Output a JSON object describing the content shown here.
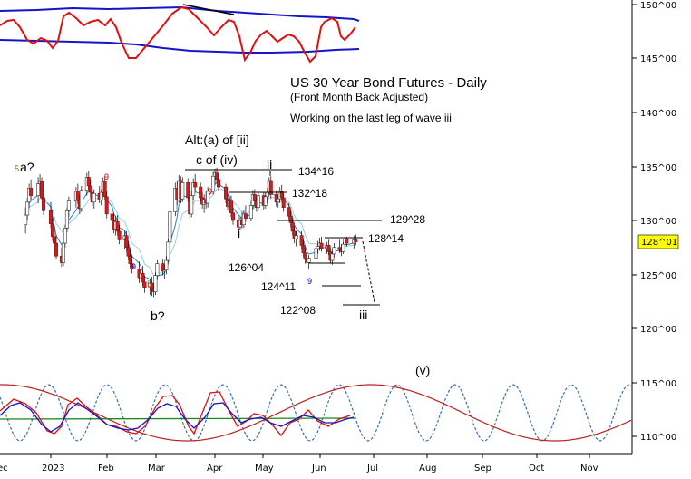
{
  "chart_data": {
    "type": "candlestick",
    "title": "US 30 Year Bond Futures - Daily",
    "subtitle": "(Front Month Back Adjusted)",
    "note": "Working on the last leg of wave iii",
    "y_axis": {
      "side": "right",
      "range": [
        107.5,
        151.5
      ],
      "ticks": [
        "150^00",
        "145^00",
        "140^00",
        "135^00",
        "130^00",
        "125^00",
        "120^00",
        "115^00",
        "110^00"
      ]
    },
    "x_axis": {
      "ticks": [
        "ec",
        "2023",
        "Feb",
        "Mar",
        "Apr",
        "May",
        "Jun",
        "Jul",
        "Aug",
        "Sep",
        "Oct",
        "Nov"
      ]
    },
    "last_price": {
      "label": "128^01",
      "value": 128.03,
      "color": "#ffff00"
    },
    "wave_labels": [
      {
        "text": "a?",
        "date": "2022-12-27",
        "price": 134.6
      },
      {
        "text": "b?",
        "date": "2023-03-02",
        "price": 120.8
      },
      {
        "text": "Alt:(a) of [ii]",
        "date": "2023-04-04",
        "price": 137.3
      },
      {
        "text": "c of (iv)",
        "date": "2023-04-04",
        "price": 135.5
      },
      {
        "text": "ii",
        "date": "2023-05-08",
        "price": 135.1
      },
      {
        "text": "i",
        "date": "2023-04-25",
        "price": 129.0
      },
      {
        "text": "iii",
        "date": "2023-06-25",
        "price": 121.1
      },
      {
        "text": "(v)",
        "date": "2023-08-01",
        "price": 116.0
      }
    ],
    "levels": [
      {
        "label": "134^16",
        "value": 134.5,
        "from": "2023-03-28",
        "to": "2023-05-22"
      },
      {
        "label": "132^18",
        "value": 132.56,
        "from": "2023-04-12",
        "to": "2023-05-22"
      },
      {
        "label": "129^28",
        "value": 129.88,
        "from": "2023-05-18",
        "to": "2023-07-15"
      },
      {
        "label": "128^14",
        "value": 128.44,
        "from": "2023-06-08",
        "to": "2023-06-28"
      },
      {
        "label": "126^04",
        "value": 126.13
      },
      {
        "label": "124^11",
        "value": 124.34,
        "from": "2023-06-05",
        "to": "2023-06-22"
      },
      {
        "label": "122^08",
        "value": 122.25,
        "from": "2023-06-23",
        "to": "2023-07-07"
      }
    ],
    "sequential_counts": [
      {
        "text": "5",
        "date": "2022-12-25",
        "price": 134.7,
        "color": "#8b6914"
      },
      {
        "text": "9",
        "date": "2023-01-28",
        "price": 133.9,
        "color": "#cc0000"
      },
      {
        "text": "9",
        "date": "2023-02-22",
        "price": 124.9,
        "color": "#0000cc"
      },
      {
        "text": "5",
        "date": "2023-02-27",
        "price": 122.9,
        "color": "#8b6914"
      },
      {
        "text": "9",
        "date": "2023-03-30",
        "price": 132.6,
        "color": "#cc0000"
      },
      {
        "text": "9",
        "date": "2023-05-28",
        "price": 123.6,
        "color": "#0000cc"
      }
    ],
    "series": [
      {
        "name": "OHLC",
        "ohlc": [
          [
            "2022-12-20",
            129.6,
            131.2,
            128.8,
            130.5
          ],
          [
            "2022-12-21",
            130.5,
            132.1,
            130.0,
            131.7
          ],
          [
            "2022-12-22",
            131.7,
            133.4,
            131.2,
            133.0
          ],
          [
            "2022-12-23",
            133.0,
            133.8,
            131.9,
            132.3
          ],
          [
            "2022-12-27",
            132.3,
            134.0,
            131.6,
            133.4
          ],
          [
            "2022-12-28",
            133.4,
            134.3,
            132.7,
            133.6
          ],
          [
            "2022-12-29",
            133.6,
            134.0,
            131.9,
            132.1
          ],
          [
            "2022-12-30",
            132.1,
            132.9,
            130.5,
            130.9
          ],
          [
            "2023-01-03",
            130.9,
            131.7,
            129.3,
            129.7
          ],
          [
            "2023-01-04",
            129.7,
            130.3,
            128.1,
            128.5
          ],
          [
            "2023-01-05",
            128.5,
            129.4,
            127.4,
            127.9
          ],
          [
            "2023-01-06",
            127.9,
            128.7,
            126.4,
            126.7
          ],
          [
            "2023-01-09",
            126.7,
            127.5,
            125.7,
            126.1
          ],
          [
            "2023-01-10",
            126.1,
            128.3,
            125.8,
            127.9
          ],
          [
            "2023-01-11",
            127.9,
            129.6,
            127.5,
            129.3
          ],
          [
            "2023-01-12",
            129.3,
            131.2,
            128.9,
            130.9
          ],
          [
            "2023-01-13",
            130.9,
            132.2,
            130.3,
            131.8
          ],
          [
            "2023-01-17",
            131.8,
            133.1,
            131.2,
            132.7
          ],
          [
            "2023-01-18",
            132.7,
            133.4,
            131.5,
            131.9
          ],
          [
            "2023-01-19",
            131.9,
            132.4,
            130.6,
            131.1
          ],
          [
            "2023-01-20",
            131.1,
            133.2,
            130.8,
            132.8
          ],
          [
            "2023-01-23",
            132.8,
            134.4,
            132.3,
            134.0
          ],
          [
            "2023-01-24",
            134.0,
            134.6,
            132.9,
            133.2
          ],
          [
            "2023-01-25",
            133.2,
            133.8,
            132.1,
            132.6
          ],
          [
            "2023-01-26",
            132.6,
            133.1,
            131.3,
            131.7
          ],
          [
            "2023-01-27",
            131.7,
            132.9,
            131.1,
            132.5
          ],
          [
            "2023-01-30",
            132.5,
            133.2,
            131.6,
            131.9
          ],
          [
            "2023-01-31",
            131.9,
            132.9,
            131.4,
            132.6
          ],
          [
            "2023-02-01",
            132.6,
            134.0,
            132.2,
            133.6
          ],
          [
            "2023-02-02",
            133.6,
            134.1,
            131.9,
            132.2
          ],
          [
            "2023-02-03",
            132.2,
            132.7,
            130.2,
            130.6
          ],
          [
            "2023-02-06",
            130.6,
            131.3,
            129.6,
            130.0
          ],
          [
            "2023-02-07",
            130.0,
            130.7,
            128.8,
            129.2
          ],
          [
            "2023-02-08",
            129.2,
            130.4,
            128.6,
            129.9
          ],
          [
            "2023-02-09",
            129.9,
            130.5,
            128.6,
            129.0
          ],
          [
            "2023-02-10",
            129.0,
            129.6,
            127.8,
            128.2
          ],
          [
            "2023-02-13",
            128.2,
            129.1,
            127.4,
            128.6
          ],
          [
            "2023-02-14",
            128.6,
            129.0,
            127.1,
            127.5
          ],
          [
            "2023-02-15",
            127.5,
            128.1,
            126.3,
            126.7
          ],
          [
            "2023-02-16",
            126.7,
            127.3,
            125.6,
            126.0
          ],
          [
            "2023-02-17",
            126.0,
            126.8,
            125.1,
            125.5
          ],
          [
            "2023-02-21",
            125.5,
            126.2,
            124.2,
            124.7
          ],
          [
            "2023-02-22",
            124.7,
            125.6,
            124.1,
            125.1
          ],
          [
            "2023-02-23",
            125.1,
            125.8,
            123.9,
            124.3
          ],
          [
            "2023-02-24",
            124.3,
            124.9,
            123.3,
            123.8
          ],
          [
            "2023-02-27",
            123.8,
            124.6,
            123.1,
            124.2
          ],
          [
            "2023-02-28",
            124.2,
            124.8,
            123.0,
            123.6
          ],
          [
            "2023-03-01",
            123.6,
            124.1,
            122.9,
            123.4
          ],
          [
            "2023-03-02",
            123.4,
            125.2,
            123.1,
            124.9
          ],
          [
            "2023-03-03",
            124.9,
            126.3,
            124.5,
            126.0
          ],
          [
            "2023-03-06",
            126.0,
            126.4,
            124.9,
            125.3
          ],
          [
            "2023-03-07",
            125.3,
            125.9,
            124.6,
            125.4
          ],
          [
            "2023-03-08",
            125.4,
            126.7,
            125.0,
            126.3
          ],
          [
            "2023-03-09",
            126.3,
            128.3,
            126.0,
            128.0
          ],
          [
            "2023-03-10",
            128.0,
            131.2,
            127.8,
            130.8
          ],
          [
            "2023-03-13",
            130.8,
            133.5,
            130.4,
            133.0
          ],
          [
            "2023-03-14",
            133.0,
            133.6,
            131.4,
            131.9
          ],
          [
            "2023-03-15",
            131.9,
            134.2,
            131.6,
            133.7
          ],
          [
            "2023-03-16",
            133.7,
            134.1,
            131.6,
            132.0
          ],
          [
            "2023-03-17",
            132.0,
            134.0,
            131.7,
            133.5
          ],
          [
            "2023-03-20",
            133.5,
            133.9,
            131.7,
            132.1
          ],
          [
            "2023-03-21",
            132.1,
            132.5,
            130.2,
            130.6
          ],
          [
            "2023-03-22",
            130.6,
            132.8,
            130.3,
            132.3
          ],
          [
            "2023-03-23",
            132.3,
            133.9,
            131.9,
            133.5
          ],
          [
            "2023-03-24",
            133.5,
            134.3,
            132.6,
            133.1
          ],
          [
            "2023-03-27",
            133.1,
            133.5,
            131.7,
            132.1
          ],
          [
            "2023-03-28",
            132.1,
            132.6,
            131.1,
            131.5
          ],
          [
            "2023-03-29",
            131.5,
            132.4,
            130.7,
            131.9
          ],
          [
            "2023-03-30",
            131.9,
            132.8,
            131.1,
            131.6
          ],
          [
            "2023-03-31",
            131.6,
            133.1,
            131.2,
            132.7
          ],
          [
            "2023-04-03",
            132.7,
            134.5,
            132.4,
            134.1
          ],
          [
            "2023-04-04",
            134.1,
            134.8,
            133.4,
            134.4
          ],
          [
            "2023-04-05",
            134.4,
            134.9,
            133.5,
            133.8
          ],
          [
            "2023-04-06",
            133.8,
            134.2,
            132.7,
            133.1
          ],
          [
            "2023-04-10",
            133.1,
            133.4,
            131.6,
            132.0
          ],
          [
            "2023-04-11",
            132.0,
            132.5,
            130.9,
            131.3
          ],
          [
            "2023-04-12",
            131.3,
            132.2,
            130.8,
            131.8
          ],
          [
            "2023-04-13",
            131.8,
            132.3,
            130.3,
            130.7
          ],
          [
            "2023-04-14",
            130.7,
            131.2,
            129.6,
            130.0
          ],
          [
            "2023-04-17",
            130.0,
            130.4,
            129.0,
            129.4
          ],
          [
            "2023-04-18",
            129.4,
            130.3,
            129.1,
            130.0
          ],
          [
            "2023-04-19",
            130.0,
            130.8,
            129.3,
            129.6
          ],
          [
            "2023-04-20",
            129.6,
            131.0,
            129.3,
            130.6
          ],
          [
            "2023-04-21",
            130.6,
            131.4,
            129.9,
            130.2
          ],
          [
            "2023-04-24",
            130.2,
            131.8,
            129.9,
            131.4
          ],
          [
            "2023-04-25",
            131.4,
            132.8,
            131.0,
            132.4
          ],
          [
            "2023-04-26",
            132.4,
            132.9,
            131.4,
            131.8
          ],
          [
            "2023-04-27",
            131.8,
            132.2,
            130.8,
            131.2
          ],
          [
            "2023-04-28",
            131.2,
            132.7,
            130.9,
            132.3
          ],
          [
            "2023-05-01",
            132.3,
            132.6,
            131.0,
            131.4
          ],
          [
            "2023-05-02",
            131.4,
            132.6,
            131.1,
            132.2
          ],
          [
            "2023-05-03",
            132.2,
            133.0,
            131.6,
            132.6
          ],
          [
            "2023-05-04",
            132.6,
            134.0,
            132.3,
            133.7
          ],
          [
            "2023-05-05",
            133.7,
            134.1,
            132.0,
            132.4
          ],
          [
            "2023-05-08",
            132.4,
            132.8,
            131.3,
            131.7
          ],
          [
            "2023-05-09",
            131.7,
            132.4,
            131.2,
            132.0
          ],
          [
            "2023-05-10",
            132.0,
            133.1,
            131.6,
            132.7
          ],
          [
            "2023-05-11",
            132.7,
            133.3,
            131.7,
            132.1
          ],
          [
            "2023-05-12",
            132.1,
            132.5,
            130.8,
            131.2
          ],
          [
            "2023-05-15",
            131.2,
            131.6,
            130.0,
            130.4
          ],
          [
            "2023-05-16",
            130.4,
            130.9,
            129.4,
            129.8
          ],
          [
            "2023-05-17",
            129.8,
            130.2,
            128.6,
            129.0
          ],
          [
            "2023-05-18",
            129.0,
            129.5,
            127.9,
            128.3
          ],
          [
            "2023-05-19",
            128.3,
            129.0,
            127.6,
            128.6
          ],
          [
            "2023-05-22",
            128.6,
            129.0,
            127.3,
            127.7
          ],
          [
            "2023-05-23",
            127.7,
            128.2,
            126.6,
            127.0
          ],
          [
            "2023-05-24",
            127.0,
            127.5,
            126.0,
            126.4
          ],
          [
            "2023-05-25",
            126.4,
            126.9,
            125.6,
            126.1
          ],
          [
            "2023-05-26",
            126.1,
            126.8,
            125.5,
            126.5
          ],
          [
            "2023-05-30",
            126.5,
            127.7,
            126.2,
            127.4
          ],
          [
            "2023-05-31",
            127.4,
            128.1,
            126.9,
            127.6
          ],
          [
            "2023-06-01",
            127.6,
            128.4,
            127.2,
            127.9
          ],
          [
            "2023-06-02",
            127.9,
            128.5,
            127.1,
            127.4
          ],
          [
            "2023-06-05",
            127.4,
            128.0,
            126.9,
            127.7
          ],
          [
            "2023-06-06",
            127.7,
            128.2,
            126.8,
            127.1
          ],
          [
            "2023-06-07",
            127.1,
            127.5,
            126.0,
            126.3
          ],
          [
            "2023-06-08",
            126.3,
            127.2,
            125.9,
            126.9
          ],
          [
            "2023-06-09",
            126.9,
            127.9,
            126.6,
            127.5
          ],
          [
            "2023-06-12",
            127.5,
            128.2,
            127.0,
            127.3
          ],
          [
            "2023-06-13",
            127.3,
            127.8,
            126.7,
            127.1
          ],
          [
            "2023-06-14",
            127.1,
            128.0,
            126.9,
            127.8
          ],
          [
            "2023-06-15",
            127.8,
            128.6,
            127.5,
            128.3
          ],
          [
            "2023-06-16",
            128.3,
            128.5,
            127.6,
            127.9
          ],
          [
            "2023-06-20",
            127.9,
            128.6,
            127.4,
            128.2
          ],
          [
            "2023-06-21",
            128.2,
            128.7,
            127.7,
            128.0
          ]
        ]
      },
      {
        "name": "MA fast",
        "color": "#2a7fc0"
      },
      {
        "name": "MA slow",
        "color": "#9ecbe6"
      }
    ]
  }
}
